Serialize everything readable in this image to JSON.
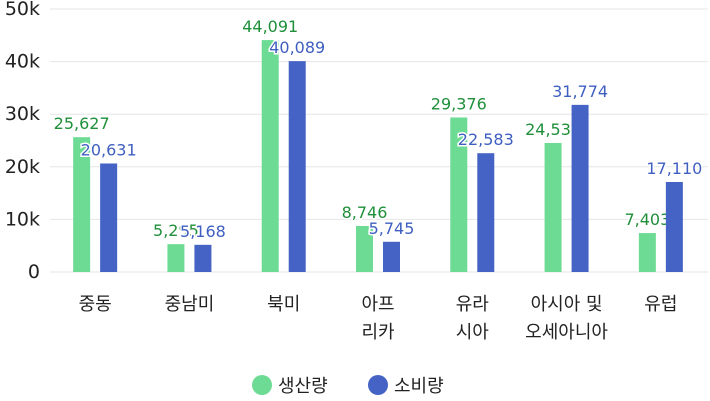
{
  "chart_data": {
    "type": "bar",
    "title": "",
    "xlabel": "",
    "ylabel": "",
    "ylim": [
      0,
      50000
    ],
    "yticks": [
      {
        "value": 0,
        "label": "0"
      },
      {
        "value": 10000,
        "label": "10k"
      },
      {
        "value": 20000,
        "label": "20k"
      },
      {
        "value": 30000,
        "label": "30k"
      },
      {
        "value": 40000,
        "label": "40k"
      },
      {
        "value": 50000,
        "label": "50k"
      }
    ],
    "grid": true,
    "legend_position": "bottom",
    "categories": [
      [
        "중동"
      ],
      [
        "중남미"
      ],
      [
        "북미"
      ],
      [
        "아프",
        "리카"
      ],
      [
        "유라",
        "시아"
      ],
      [
        "아시아 및",
        "오세아니아"
      ],
      [
        "유럽"
      ]
    ],
    "series": [
      {
        "name": "생산량",
        "color": "#6ddb94",
        "label_color": "#1f8f3a",
        "values": [
          25627,
          5295,
          44091,
          8746,
          29376,
          24531,
          7403
        ],
        "labels": [
          "25,627",
          "5,295",
          "44,091",
          "8,746",
          "29,376",
          "24,531",
          "7,403"
        ]
      },
      {
        "name": "소비량",
        "color": "#4463c4",
        "label_color": "#3f5fc0",
        "values": [
          20631,
          5168,
          40089,
          5745,
          22583,
          31774,
          17110
        ],
        "labels": [
          "20,631",
          "5,168",
          "40,089",
          "5,745",
          "22,583",
          "31,774",
          "17,110"
        ]
      }
    ]
  }
}
